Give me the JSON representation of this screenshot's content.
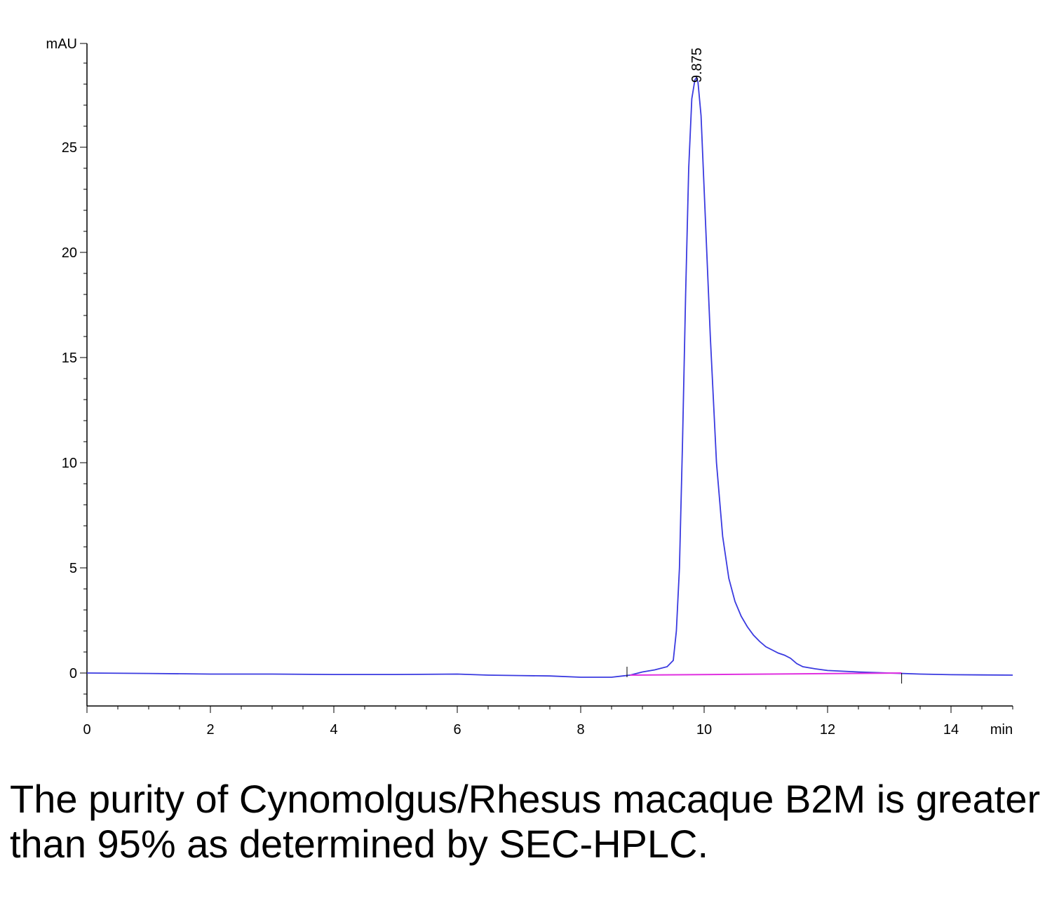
{
  "chart_data": {
    "type": "line",
    "x_unit": "min",
    "y_unit": "mAU",
    "xlim": [
      0,
      15
    ],
    "ylim": [
      -1.6,
      30
    ],
    "x_ticks": [
      0,
      2,
      4,
      6,
      8,
      10,
      12,
      14
    ],
    "x_tick_labels": [
      "0",
      "2",
      "4",
      "6",
      "8",
      "10",
      "12",
      "14"
    ],
    "y_ticks": [
      0,
      5,
      10,
      15,
      20,
      25
    ],
    "y_tick_labels": [
      "0",
      "5",
      "10",
      "15",
      "20",
      "25"
    ],
    "grid": false,
    "series": [
      {
        "color": "#3a3ae0",
        "x": [
          0,
          1,
          2,
          3,
          4,
          5,
          6,
          6.5,
          7,
          7.5,
          8,
          8.5,
          8.8,
          9.0,
          9.2,
          9.4,
          9.5,
          9.55,
          9.6,
          9.65,
          9.7,
          9.75,
          9.8,
          9.85,
          9.875,
          9.9,
          9.95,
          10.0,
          10.1,
          10.2,
          10.3,
          10.4,
          10.5,
          10.6,
          10.7,
          10.8,
          10.9,
          11.0,
          11.1,
          11.2,
          11.3,
          11.4,
          11.5,
          11.6,
          11.8,
          12.0,
          12.5,
          13.0,
          13.5,
          14.0,
          15.0
        ],
        "y": [
          0.0,
          -0.02,
          -0.05,
          -0.05,
          -0.07,
          -0.07,
          -0.05,
          -0.1,
          -0.12,
          -0.14,
          -0.2,
          -0.2,
          -0.1,
          0.05,
          0.15,
          0.3,
          0.6,
          2.0,
          5.0,
          11.0,
          18.0,
          24.0,
          27.3,
          28.2,
          28.3,
          28.1,
          26.5,
          23.0,
          16.0,
          10.0,
          6.5,
          4.5,
          3.4,
          2.7,
          2.2,
          1.8,
          1.5,
          1.25,
          1.1,
          0.95,
          0.85,
          0.7,
          0.45,
          0.3,
          0.2,
          0.12,
          0.05,
          0.0,
          -0.05,
          -0.08,
          -0.1
        ]
      },
      {
        "color": "#e030e0",
        "x": [
          8.8,
          13.2
        ],
        "y": [
          -0.1,
          0.0
        ]
      }
    ],
    "annotations": [
      {
        "text": "9.875",
        "x": 9.875
      }
    ]
  },
  "caption": "The purity of Cynomolgus/Rhesus macaque B2M is greater than 95% as determined by SEC-HPLC."
}
